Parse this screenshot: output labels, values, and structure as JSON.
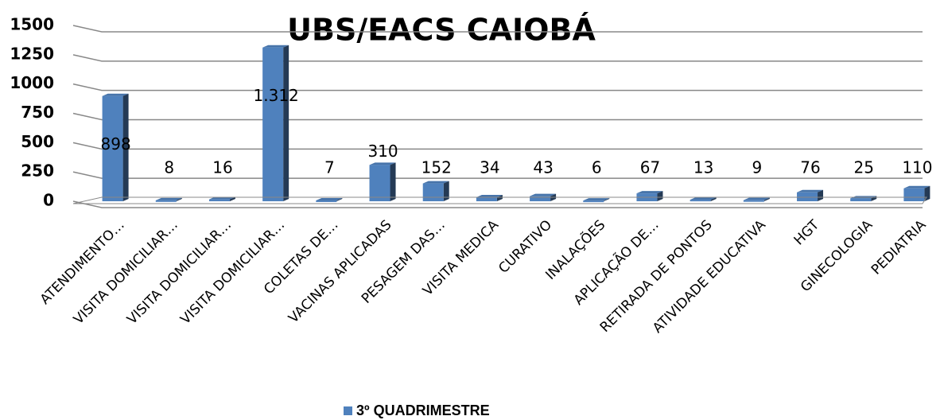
{
  "chart_data": {
    "type": "bar3d",
    "title": "UBS/EACS CAIOBÁ",
    "categories": [
      "ATENDIMENTO…",
      "VISITA DOMICILIAR…",
      "VISITA DOMICILIAR…",
      "VISITA DOMICILIAR…",
      "COLETAS DE…",
      "VACINAS APLICADAS",
      "PESAGEM DAS…",
      "VISITA MEDICA",
      "CURATIVO",
      "INALAÇÕES",
      "APLICAÇÃO DE…",
      "RETIRADA DE PONTOS",
      "ATIVIDADE EDUCATIVA",
      "HGT",
      "GINECOLOGIA",
      "PEDIATRIA"
    ],
    "series": [
      {
        "name": "3º QUADRIMESTRE",
        "color": "#4f81bd",
        "values": [
          898,
          8,
          16,
          1312,
          7,
          310,
          152,
          34,
          43,
          6,
          67,
          13,
          9,
          76,
          25,
          110
        ],
        "value_labels": [
          "898",
          "8",
          "16",
          "1.312",
          "7",
          "310",
          "152",
          "34",
          "43",
          "6",
          "67",
          "13",
          "9",
          "76",
          "25",
          "110"
        ]
      }
    ],
    "ylim": [
      0,
      1500
    ],
    "yticks": [
      0,
      250,
      500,
      750,
      1000,
      1250,
      1500
    ],
    "grid": true,
    "legend": "bottom"
  }
}
